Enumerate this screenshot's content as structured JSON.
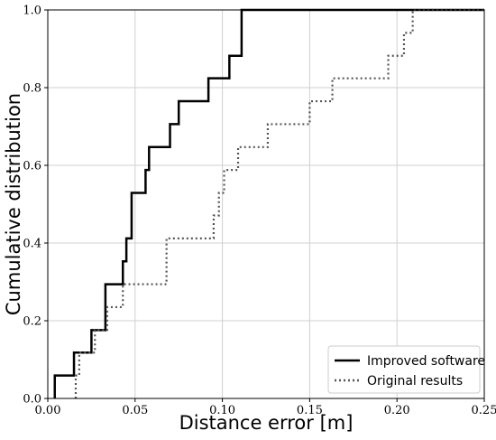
{
  "chart_data": {
    "type": "line",
    "title": "",
    "xlabel": "Distance error [m]",
    "ylabel": "Cumulative distribution",
    "xlim": [
      0,
      0.25
    ],
    "ylim": [
      0,
      1.0
    ],
    "x_ticks": [
      "0.00",
      "0.05",
      "0.10",
      "0.15",
      "0.20",
      "0.25"
    ],
    "y_ticks": [
      "0.0",
      "0.2",
      "0.4",
      "0.6",
      "0.8",
      "1.0"
    ],
    "grid": true,
    "legend_position": "bottom-right",
    "series": [
      {
        "name": "Improved software",
        "style": "solid",
        "color": "#000000",
        "x": [
          0.004,
          0.015,
          0.025,
          0.033,
          0.043,
          0.045,
          0.048,
          0.056,
          0.058,
          0.07,
          0.075,
          0.092,
          0.104,
          0.111
        ],
        "y": [
          0.059,
          0.118,
          0.176,
          0.294,
          0.353,
          0.412,
          0.529,
          0.588,
          0.647,
          0.706,
          0.765,
          0.824,
          0.882,
          1.0
        ]
      },
      {
        "name": "Original results",
        "style": "dotted",
        "color": "#555555",
        "x": [
          0.016,
          0.018,
          0.027,
          0.034,
          0.037,
          0.043,
          0.068,
          0.095,
          0.098,
          0.101,
          0.106,
          0.109,
          0.111,
          0.126,
          0.15,
          0.163,
          0.195,
          0.199,
          0.204,
          0.207,
          0.209
        ],
        "y": [
          0.059,
          0.118,
          0.176,
          0.235,
          0.235,
          0.294,
          0.412,
          0.471,
          0.529,
          0.588,
          0.588,
          0.647,
          0.647,
          0.706,
          0.765,
          0.824,
          0.882,
          0.882,
          0.941,
          0.941,
          1.0
        ]
      }
    ]
  }
}
